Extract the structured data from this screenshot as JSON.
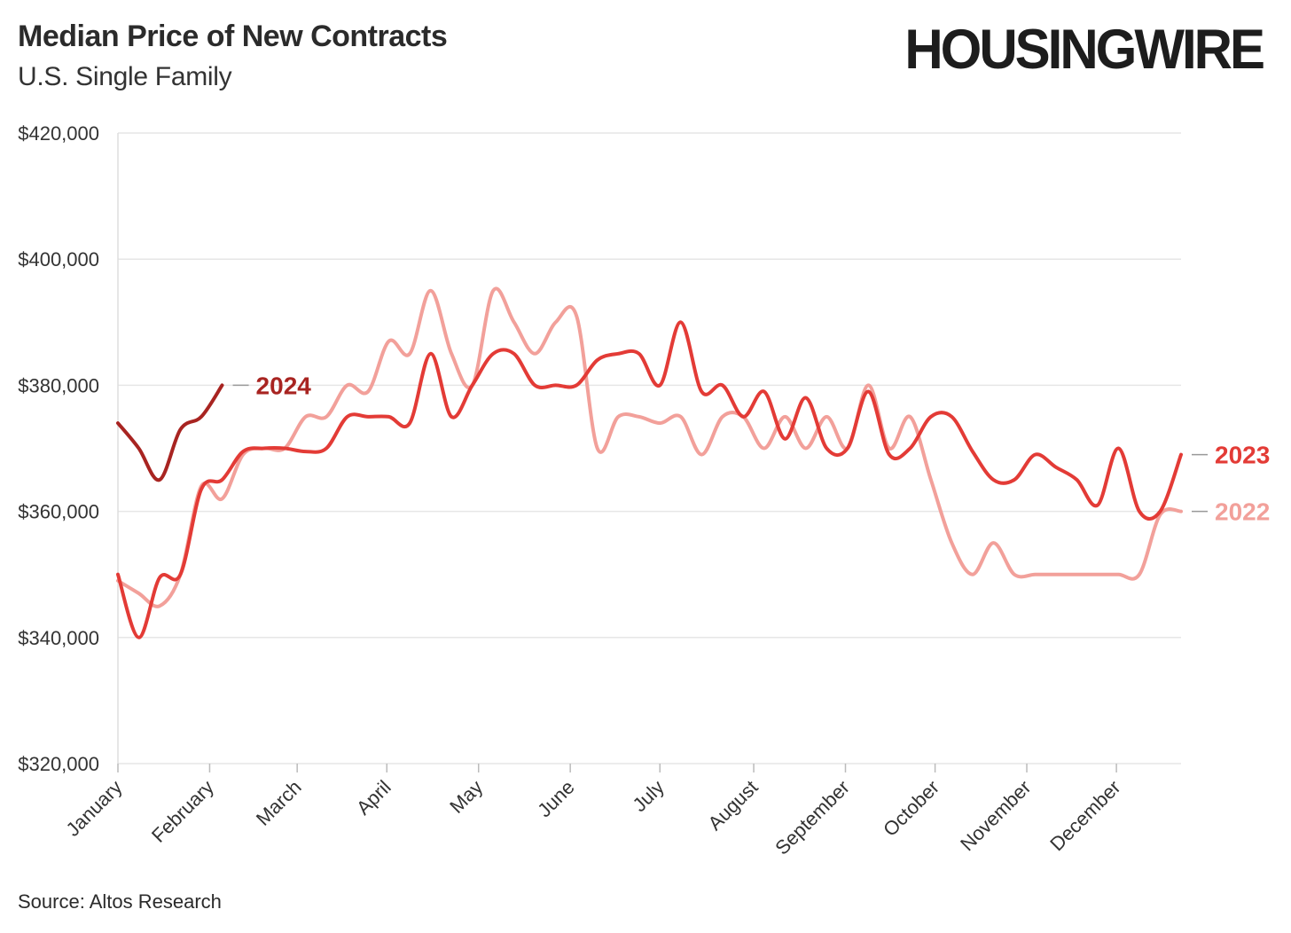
{
  "header": {
    "title": "Median Price of New Contracts",
    "subtitle": "U.S. Single Family",
    "logo": "HOUSINGWIRE"
  },
  "footer": {
    "source": "Source: Altos Research"
  },
  "chart_data": {
    "type": "line",
    "title": "Median Price of New Contracts",
    "subtitle": "U.S. Single Family",
    "xlabel": "",
    "ylabel": "",
    "ylim": [
      320000,
      420000
    ],
    "yticks": [
      320000,
      340000,
      360000,
      380000,
      400000,
      420000
    ],
    "ytick_labels": [
      "$320,000",
      "$340,000",
      "$360,000",
      "$380,000",
      "$400,000",
      "$420,000"
    ],
    "x_unit": "week of year (1-52)",
    "xlim": [
      1,
      52
    ],
    "month_ticks": [
      {
        "label": "January",
        "week": 1
      },
      {
        "label": "February",
        "week": 5.4
      },
      {
        "label": "March",
        "week": 9.6
      },
      {
        "label": "April",
        "week": 13.9
      },
      {
        "label": "May",
        "week": 18.3
      },
      {
        "label": "June",
        "week": 22.7
      },
      {
        "label": "July",
        "week": 27
      },
      {
        "label": "August",
        "week": 31.5
      },
      {
        "label": "September",
        "week": 35.9
      },
      {
        "label": "October",
        "week": 40.2
      },
      {
        "label": "November",
        "week": 44.6
      },
      {
        "label": "December",
        "week": 48.9
      }
    ],
    "grid": true,
    "series": [
      {
        "name": "2022",
        "label": "2022",
        "color": "#f2a09a",
        "x": [
          1,
          2,
          3,
          4,
          5,
          6,
          7,
          8,
          9,
          10,
          11,
          12,
          13,
          14,
          15,
          16,
          17,
          18,
          19,
          20,
          21,
          22,
          23,
          24,
          25,
          26,
          27,
          28,
          29,
          30,
          31,
          32,
          33,
          34,
          35,
          36,
          37,
          38,
          39,
          40,
          41,
          42,
          43,
          44,
          45,
          46,
          47,
          48,
          49,
          50,
          51,
          52
        ],
        "values": [
          349000,
          347000,
          345000,
          350000,
          364000,
          362000,
          369000,
          370000,
          370000,
          375000,
          375000,
          380000,
          379000,
          387000,
          385000,
          395000,
          385000,
          380000,
          395000,
          390000,
          385000,
          390000,
          391000,
          370000,
          375000,
          375000,
          374000,
          375000,
          369000,
          375000,
          375000,
          370000,
          375000,
          370000,
          375000,
          370000,
          380000,
          370000,
          375000,
          365000,
          355000,
          350000,
          355000,
          350000,
          350000,
          350000,
          350000,
          350000,
          350000,
          350000,
          359500,
          360000
        ]
      },
      {
        "name": "2023",
        "label": "2023",
        "color": "#e33b36",
        "x": [
          1,
          2,
          3,
          4,
          5,
          6,
          7,
          8,
          9,
          10,
          11,
          12,
          13,
          14,
          15,
          16,
          17,
          18,
          19,
          20,
          21,
          22,
          23,
          24,
          25,
          26,
          27,
          28,
          29,
          30,
          31,
          32,
          33,
          34,
          35,
          36,
          37,
          38,
          39,
          40,
          41,
          42,
          43,
          44,
          45,
          46,
          47,
          48,
          49,
          50,
          51,
          52
        ],
        "values": [
          350000,
          340000,
          349500,
          350000,
          363500,
          365000,
          369500,
          370000,
          370000,
          369500,
          370000,
          375000,
          375000,
          375000,
          374000,
          385000,
          375000,
          380000,
          385000,
          385000,
          380000,
          380000,
          380000,
          384000,
          385000,
          385000,
          380000,
          390000,
          379000,
          380000,
          375000,
          379000,
          371500,
          378000,
          370000,
          370000,
          379000,
          369000,
          370000,
          375000,
          375000,
          369500,
          365000,
          365000,
          369000,
          367000,
          365000,
          361000,
          370000,
          360000,
          360000,
          369000
        ]
      },
      {
        "name": "2024",
        "label": "2024",
        "color": "#a82421",
        "x": [
          1,
          2,
          3,
          4,
          5,
          6
        ],
        "values": [
          374000,
          370000,
          365000,
          373000,
          375000,
          380000
        ]
      }
    ]
  }
}
